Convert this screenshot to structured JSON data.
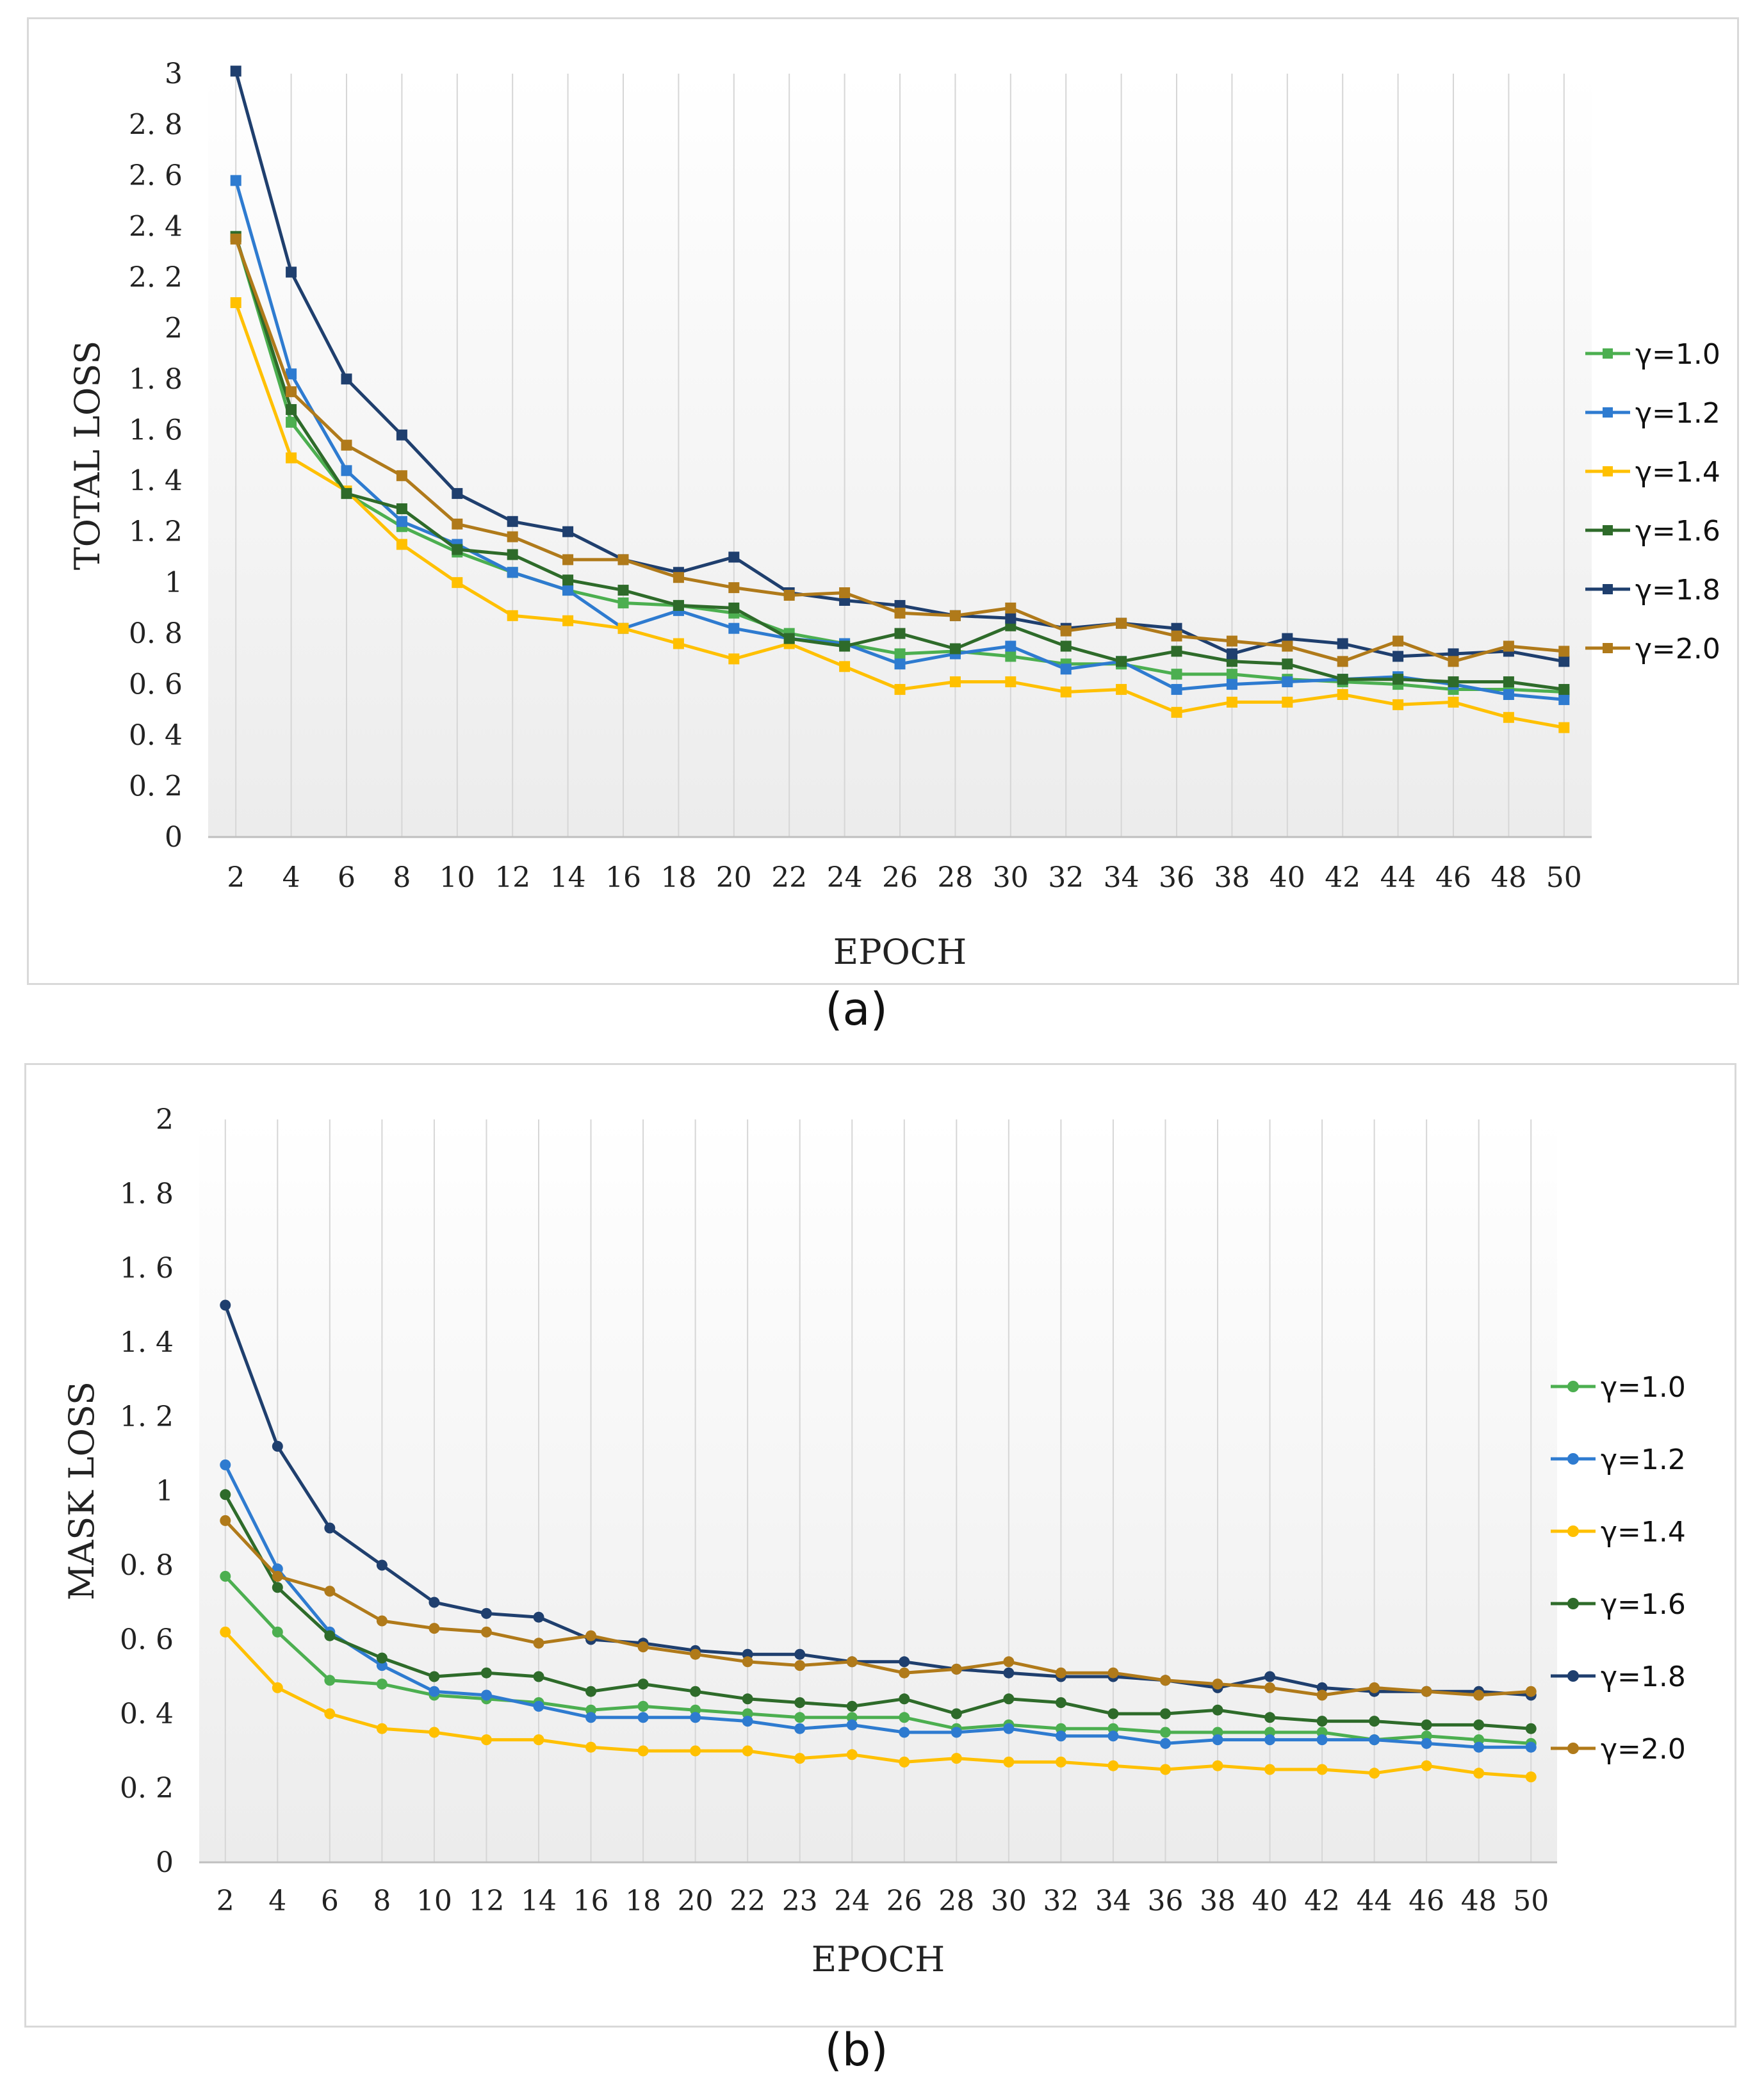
{
  "figures": {
    "a": {
      "caption": "(a)"
    },
    "b": {
      "caption": "(b)"
    }
  },
  "chart_data": [
    {
      "id": "a",
      "type": "line",
      "marker": "square",
      "xlabel": "EPOCH",
      "ylabel": "TOTAL LOSS",
      "ylim": [
        0,
        3
      ],
      "yticks": [
        "0",
        "0. 2",
        "0. 4",
        "0. 6",
        "0. 8",
        "1",
        "1. 2",
        "1. 4",
        "1. 6",
        "1. 8",
        "2",
        "2. 2",
        "2. 4",
        "2. 6",
        "2. 8",
        "3"
      ],
      "categories": [
        "2",
        "4",
        "6",
        "8",
        "10",
        "12",
        "14",
        "16",
        "18",
        "20",
        "22",
        "24",
        "26",
        "28",
        "30",
        "32",
        "34",
        "36",
        "38",
        "40",
        "42",
        "44",
        "46",
        "48",
        "50"
      ],
      "series": [
        {
          "name": "γ=1.0",
          "color": "#4caf50",
          "values": [
            2.36,
            1.63,
            1.35,
            1.22,
            1.12,
            1.04,
            0.97,
            0.92,
            0.91,
            0.88,
            0.8,
            0.76,
            0.72,
            0.73,
            0.71,
            0.68,
            0.68,
            0.64,
            0.64,
            0.62,
            0.61,
            0.6,
            0.58,
            0.58,
            0.57
          ]
        },
        {
          "name": "γ=1.2",
          "color": "#2e7bd0",
          "values": [
            2.58,
            1.82,
            1.44,
            1.24,
            1.15,
            1.04,
            0.97,
            0.82,
            0.89,
            0.82,
            0.78,
            0.76,
            0.68,
            0.72,
            0.75,
            0.66,
            0.69,
            0.58,
            0.6,
            0.61,
            0.62,
            0.63,
            0.6,
            0.56,
            0.54
          ]
        },
        {
          "name": "γ=1.4",
          "color": "#ffc000",
          "values": [
            2.1,
            1.49,
            1.36,
            1.15,
            1.0,
            0.87,
            0.85,
            0.82,
            0.76,
            0.7,
            0.76,
            0.67,
            0.58,
            0.61,
            0.61,
            0.57,
            0.58,
            0.49,
            0.53,
            0.53,
            0.56,
            0.52,
            0.53,
            0.47,
            0.43
          ]
        },
        {
          "name": "γ=1.6",
          "color": "#2e6b2a",
          "values": [
            2.36,
            1.68,
            1.35,
            1.29,
            1.13,
            1.11,
            1.01,
            0.97,
            0.91,
            0.9,
            0.78,
            0.75,
            0.8,
            0.74,
            0.83,
            0.75,
            0.69,
            0.73,
            0.69,
            0.68,
            0.62,
            0.62,
            0.61,
            0.61,
            0.58
          ]
        },
        {
          "name": "γ=1.8",
          "color": "#1f3f6e",
          "values": [
            3.01,
            2.22,
            1.8,
            1.58,
            1.35,
            1.24,
            1.2,
            1.09,
            1.04,
            1.1,
            0.96,
            0.93,
            0.91,
            0.87,
            0.86,
            0.82,
            0.84,
            0.82,
            0.72,
            0.78,
            0.76,
            0.71,
            0.72,
            0.73,
            0.69
          ]
        },
        {
          "name": "γ=2.0",
          "color": "#b07a1a",
          "values": [
            2.35,
            1.75,
            1.54,
            1.42,
            1.23,
            1.18,
            1.09,
            1.09,
            1.02,
            0.98,
            0.95,
            0.96,
            0.88,
            0.87,
            0.9,
            0.81,
            0.84,
            0.79,
            0.77,
            0.75,
            0.69,
            0.77,
            0.69,
            0.75,
            0.73
          ]
        }
      ]
    },
    {
      "id": "b",
      "type": "line",
      "marker": "circle",
      "xlabel": "EPOCH",
      "ylabel": "MASK LOSS",
      "ylim": [
        0,
        2
      ],
      "yticks": [
        "0",
        "0. 2",
        "0. 4",
        "0. 6",
        "0. 8",
        "1",
        "1. 2",
        "1. 4",
        "1. 6",
        "1. 8",
        "2"
      ],
      "categories": [
        "2",
        "4",
        "6",
        "8",
        "10",
        "12",
        "14",
        "16",
        "18",
        "20",
        "22",
        "23",
        "24",
        "26",
        "28",
        "30",
        "32",
        "34",
        "36",
        "38",
        "40",
        "42",
        "44",
        "46",
        "48",
        "50"
      ],
      "series": [
        {
          "name": "γ=1.0",
          "color": "#4caf50",
          "values": [
            0.77,
            0.62,
            0.49,
            0.48,
            0.45,
            0.44,
            0.43,
            0.41,
            0.42,
            0.41,
            0.4,
            0.39,
            0.39,
            0.39,
            0.36,
            0.37,
            0.36,
            0.36,
            0.35,
            0.35,
            0.35,
            0.35,
            0.33,
            0.34,
            0.33,
            0.32
          ]
        },
        {
          "name": "γ=1.2",
          "color": "#2e7bd0",
          "values": [
            1.07,
            0.79,
            0.62,
            0.53,
            0.46,
            0.45,
            0.42,
            0.39,
            0.39,
            0.39,
            0.38,
            0.36,
            0.37,
            0.35,
            0.35,
            0.36,
            0.34,
            0.34,
            0.32,
            0.33,
            0.33,
            0.33,
            0.33,
            0.32,
            0.31,
            0.31
          ]
        },
        {
          "name": "γ=1.4",
          "color": "#ffc000",
          "values": [
            0.62,
            0.47,
            0.4,
            0.36,
            0.35,
            0.33,
            0.33,
            0.31,
            0.3,
            0.3,
            0.3,
            0.28,
            0.29,
            0.27,
            0.28,
            0.27,
            0.27,
            0.26,
            0.25,
            0.26,
            0.25,
            0.25,
            0.24,
            0.26,
            0.24,
            0.23
          ]
        },
        {
          "name": "γ=1.6",
          "color": "#2e6b2a",
          "values": [
            0.99,
            0.74,
            0.61,
            0.55,
            0.5,
            0.51,
            0.5,
            0.46,
            0.48,
            0.46,
            0.44,
            0.43,
            0.42,
            0.44,
            0.4,
            0.44,
            0.43,
            0.4,
            0.4,
            0.41,
            0.39,
            0.38,
            0.38,
            0.37,
            0.37,
            0.36
          ]
        },
        {
          "name": "γ=1.8",
          "color": "#1f3f6e",
          "values": [
            1.5,
            1.12,
            0.9,
            0.8,
            0.7,
            0.67,
            0.66,
            0.6,
            0.59,
            0.57,
            0.56,
            0.56,
            0.54,
            0.54,
            0.52,
            0.51,
            0.5,
            0.5,
            0.49,
            0.47,
            0.5,
            0.47,
            0.46,
            0.46,
            0.46,
            0.45
          ]
        },
        {
          "name": "γ=2.0",
          "color": "#b07a1a",
          "values": [
            0.92,
            0.77,
            0.73,
            0.65,
            0.63,
            0.62,
            0.59,
            0.61,
            0.58,
            0.56,
            0.54,
            0.53,
            0.54,
            0.51,
            0.52,
            0.54,
            0.51,
            0.51,
            0.49,
            0.48,
            0.47,
            0.45,
            0.47,
            0.46,
            0.45,
            0.46
          ]
        }
      ]
    }
  ]
}
